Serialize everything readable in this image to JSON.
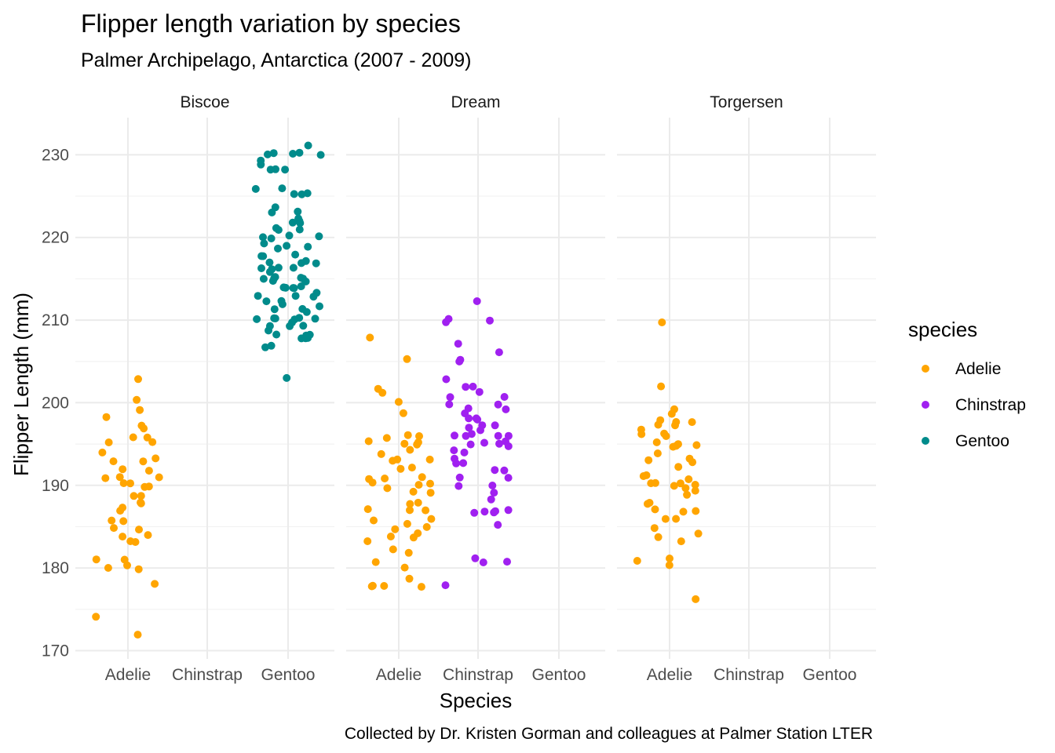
{
  "chart_data": {
    "type": "scatter",
    "title": "Flipper length variation by species",
    "subtitle": "Palmer Archipelago, Antarctica (2007 - 2009)",
    "xlabel": "Species",
    "ylabel": "Flipper Length (mm)",
    "caption": "Collected by Dr. Kristen Gorman and colleagues at Palmer Station LTER",
    "ylim": [
      169,
      234.5
    ],
    "yticks": [
      170,
      180,
      190,
      200,
      210,
      220,
      230
    ],
    "grid": true,
    "jitter": true,
    "categories": [
      "Adelie",
      "Chinstrap",
      "Gentoo"
    ],
    "facets": [
      "Biscoe",
      "Dream",
      "Torgersen"
    ],
    "legend": {
      "title": "species",
      "position": "right",
      "entries": [
        {
          "name": "Adelie",
          "color": "#FFA500"
        },
        {
          "name": "Chinstrap",
          "color": "#A020F0"
        },
        {
          "name": "Gentoo",
          "color": "#008B8B"
        }
      ]
    },
    "panels": [
      {
        "facet": "Biscoe",
        "series": [
          {
            "name": "Adelie",
            "color": "#FFA500",
            "values": [
              203,
              200,
              199,
              198,
              197,
              197,
              196,
              196,
              195,
              195,
              194,
              193,
              193,
              193,
              192,
              192,
              191,
              191,
              191,
              190,
              190,
              190,
              190,
              189,
              189,
              188,
              188,
              187,
              187,
              186,
              186,
              185,
              185,
              184,
              184,
              183,
              183,
              181,
              181,
              180,
              180,
              180,
              178,
              174,
              172
            ]
          },
          {
            "name": "Gentoo",
            "color": "#008B8B",
            "values": [
              231,
              230,
              230,
              230,
              230,
              230,
              229,
              229,
              228,
              228,
              228,
              226,
              226,
              225,
              225,
              225,
              224,
              223,
              223,
              222,
              222,
              222,
              222,
              221,
              221,
              221,
              220,
              220,
              220,
              220,
              219,
              219,
              219,
              219,
              218,
              218,
              218,
              217,
              217,
              217,
              217,
              216,
              216,
              216,
              216,
              216,
              215,
              215,
              215,
              215,
              215,
              215,
              215,
              214,
              214,
              214,
              214,
              214,
              213,
              213,
              213,
              213,
              212,
              212,
              212,
              212,
              211,
              211,
              211,
              210,
              210,
              210,
              210,
              210,
              210,
              210,
              209,
              209,
              209,
              209,
              208,
              208,
              208,
              208,
              208,
              208,
              207,
              207,
              203
            ]
          }
        ]
      },
      {
        "facet": "Dream",
        "series": [
          {
            "name": "Adelie",
            "color": "#FFA500",
            "values": [
              208,
              205,
              202,
              201,
              200,
              199,
              196,
              196,
              196,
              195,
              195,
              195,
              195,
              194,
              194,
              193,
              193,
              193,
              192,
              192,
              191,
              191,
              191,
              190,
              190,
              190,
              190,
              189,
              189,
              188,
              188,
              187,
              187,
              187,
              186,
              186,
              185,
              185,
              185,
              184,
              184,
              184,
              183,
              182,
              182,
              181,
              180,
              179,
              178,
              178,
              178,
              178
            ]
          },
          {
            "name": "Chinstrap",
            "color": "#A020F0",
            "values": [
              212,
              210,
              210,
              210,
              207,
              206,
              205,
              205,
              203,
              202,
              202,
              201,
              201,
              201,
              200,
              200,
              199,
              199,
              199,
              198,
              198,
              198,
              197,
              197,
              197,
              197,
              196,
              196,
              196,
              196,
              196,
              195,
              195,
              195,
              195,
              195,
              194,
              194,
              193,
              193,
              193,
              192,
              192,
              191,
              191,
              190,
              190,
              189,
              188,
              187,
              187,
              187,
              187,
              187,
              185,
              181,
              181,
              181,
              178
            ]
          }
        ]
      },
      {
        "facet": "Torgersen",
        "series": [
          {
            "name": "Adelie",
            "color": "#FFA500",
            "values": [
              210,
              202,
              199,
              199,
              198,
              198,
              198,
              197,
              197,
              197,
              196,
              196,
              196,
              195,
              195,
              195,
              195,
              195,
              194,
              193,
              193,
              193,
              192,
              191,
              191,
              191,
              190,
              190,
              190,
              190,
              190,
              190,
              189,
              189,
              188,
              188,
              187,
              187,
              187,
              186,
              186,
              185,
              184,
              184,
              183,
              181,
              181,
              180,
              176
            ]
          }
        ]
      }
    ]
  }
}
